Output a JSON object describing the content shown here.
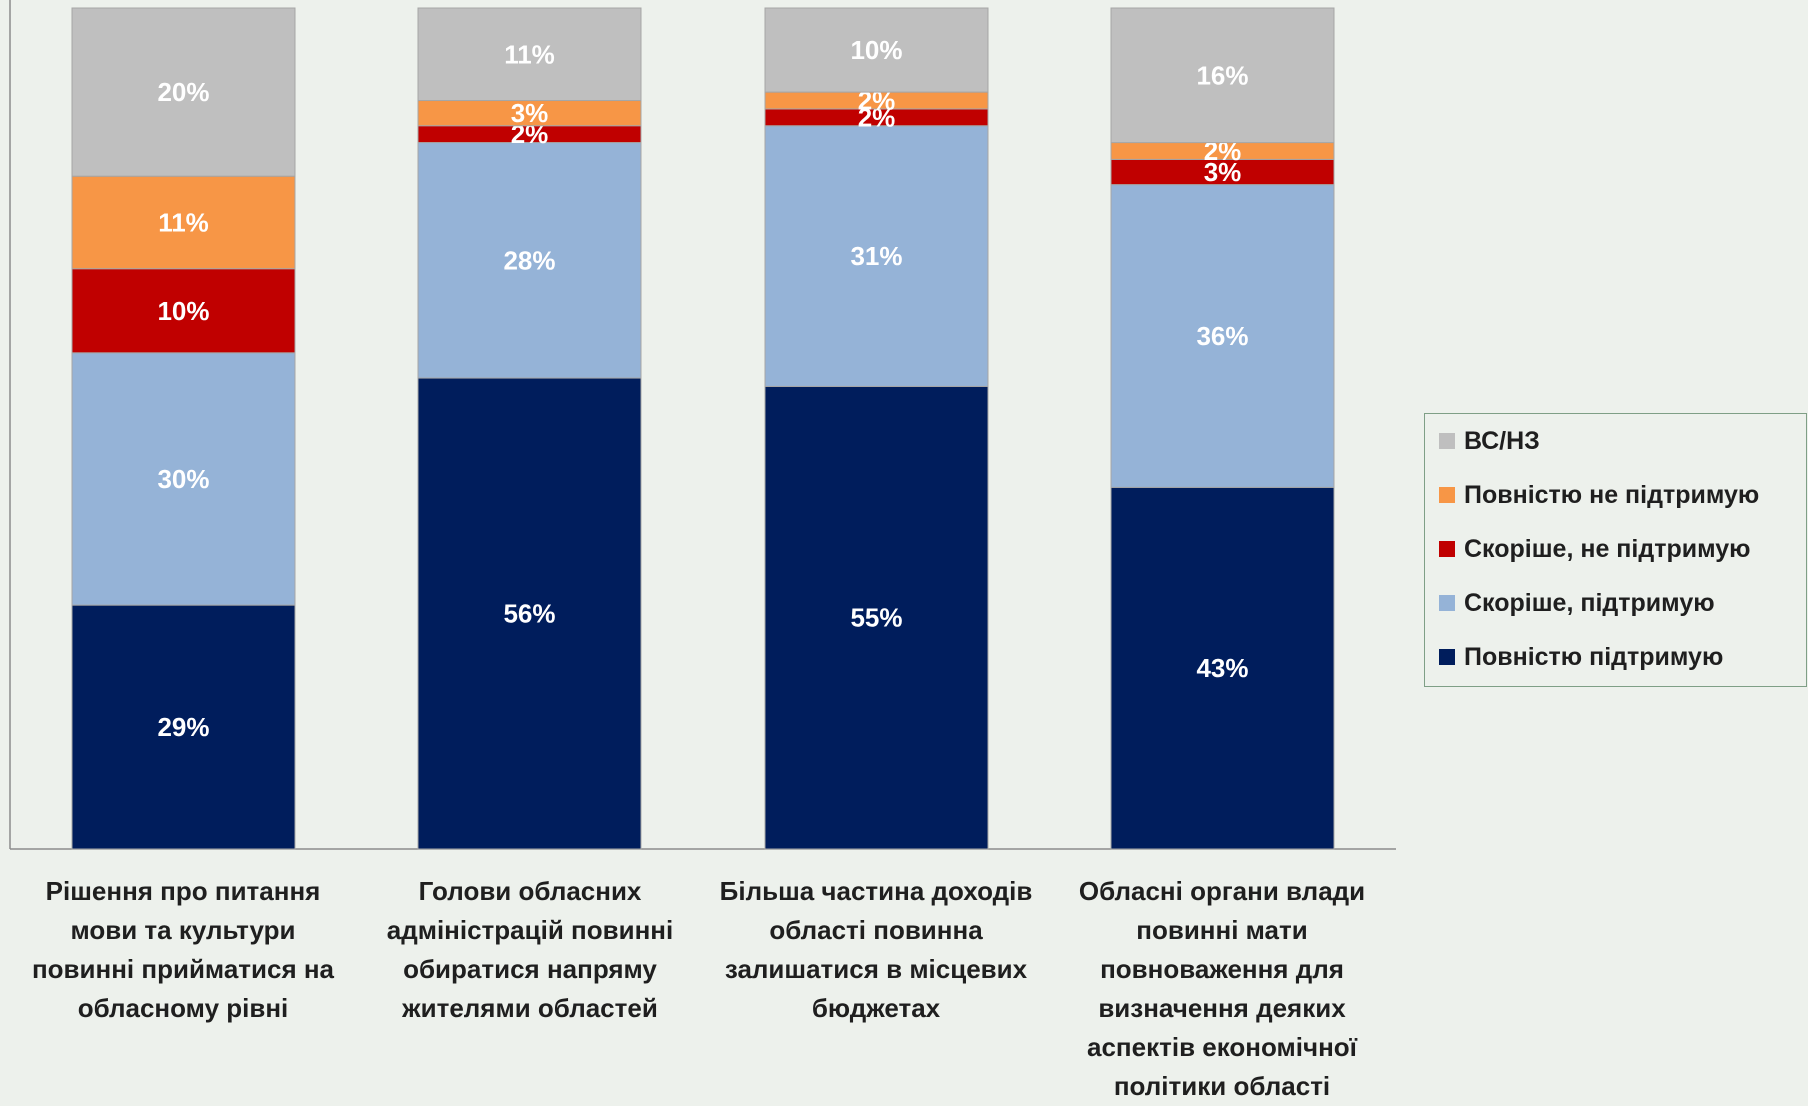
{
  "chart_data": {
    "type": "bar",
    "stacked": true,
    "categories": [
      "Рішення про питання мови та культури повинні прийматися на обласному рівні",
      "Голови обласних адміністрацій повинні обиратися напряму жителями областей",
      "Більша частина доходів області повинна залишатися в місцевих бюджетах",
      "Обласні органи влади повинні мати повноваження для визначення деяких аспектів економічної політики області"
    ],
    "series": [
      {
        "name": "Повністю підтримую",
        "color": "#001d5c",
        "values": [
          29,
          56,
          55,
          43
        ]
      },
      {
        "name": "Скоріше, підтримую",
        "color": "#95b3d7",
        "values": [
          30,
          28,
          31,
          36
        ]
      },
      {
        "name": "Скоріше, не підтримую",
        "color": "#c00000",
        "values": [
          10,
          2,
          2,
          3
        ]
      },
      {
        "name": "Повністю не підтримую",
        "color": "#f79646",
        "values": [
          11,
          3,
          2,
          2
        ]
      },
      {
        "name": "ВС/НЗ",
        "color": "#bfbfbf",
        "values": [
          20,
          11,
          10,
          16
        ]
      }
    ],
    "data_labels": [
      [
        "29%",
        "56%",
        "55%",
        "43%"
      ],
      [
        "30%",
        "28%",
        "31%",
        "36%"
      ],
      [
        "10%",
        "2%",
        "2%",
        "3%"
      ],
      [
        "11%",
        "3%",
        "2%",
        "2%"
      ],
      [
        "20%",
        "11%",
        "10%",
        "16%"
      ]
    ],
    "ylim": [
      0,
      100
    ],
    "title": "",
    "xlabel": "",
    "ylabel": "",
    "grid": false,
    "legend_position": "right"
  },
  "category_labels": [
    "Рішення про питання мови та культури повинні прийматися на обласному рівні",
    "Голови обласних адміністрацій повинні обиратися напряму жителями областей",
    "Більша частина доходів області повинна залишатися в місцевих бюджетах",
    "Обласні органи влади повинні мати повноваження для визначення деяких аспектів економічної політики області"
  ],
  "legend": [
    {
      "label": "ВС/НЗ",
      "color": "#bfbfbf"
    },
    {
      "label": "Повністю не підтримую",
      "color": "#f79646"
    },
    {
      "label": "Скоріше, не підтримую",
      "color": "#c00000"
    },
    {
      "label": "Скоріше, підтримую",
      "color": "#95b3d7"
    },
    {
      "label": "Повністю підтримую",
      "color": "#001d5c"
    }
  ]
}
